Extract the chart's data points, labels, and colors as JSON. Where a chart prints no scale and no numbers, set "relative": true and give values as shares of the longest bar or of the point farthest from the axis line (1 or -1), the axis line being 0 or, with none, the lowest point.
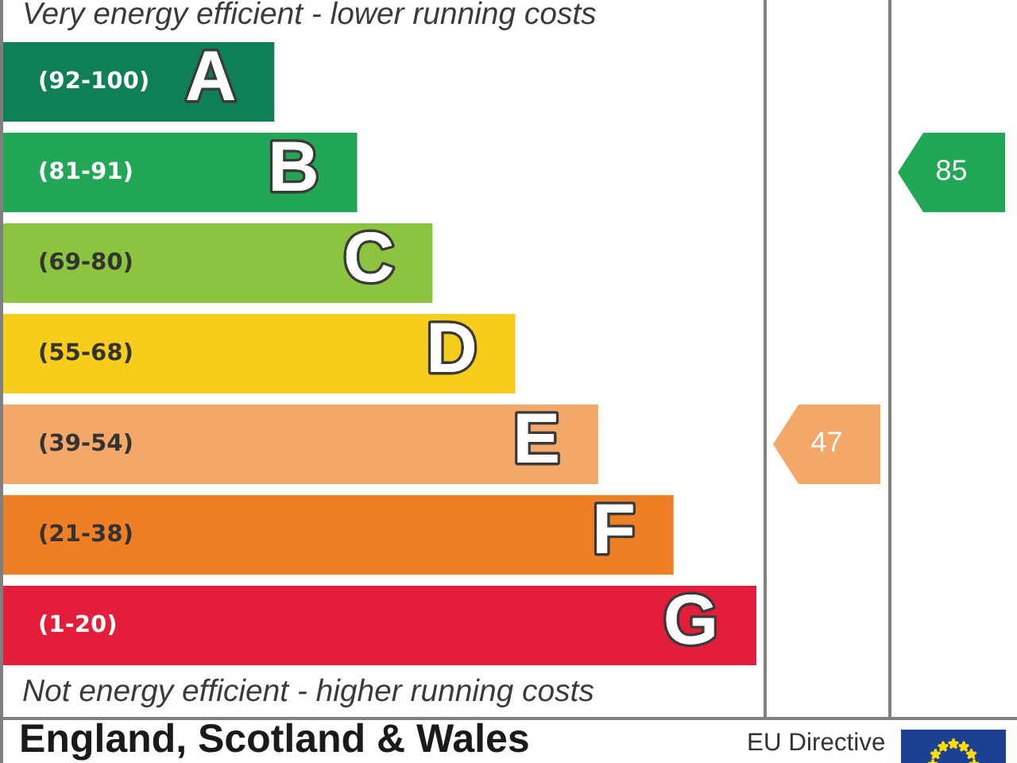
{
  "chart_data": {
    "type": "bar",
    "orientation": "horizontal",
    "relative": true,
    "categories": [
      "(92-100)",
      "(81-91)",
      "(69-80)",
      "(55-68)",
      "(39-54)",
      "(21-38)",
      "(1-20)"
    ],
    "values": [
      0.36,
      0.47,
      0.57,
      0.68,
      0.79,
      0.89,
      1
    ],
    "colors": [
      "#0f7f55",
      "#21a756",
      "#8cc43f",
      "#f7cd1c",
      "#f3a769",
      "#ee7f25",
      "#e41d3b"
    ],
    "annotations": [
      "Very energy efficient - lower running costs",
      "Not energy efficient - higher running costs",
      "England, Scotland & Wales",
      "EU Directive",
      "47",
      "85",
      {
        "text": "A",
        "x": 0.36,
        "y": "(92-100)"
      },
      {
        "text": "B",
        "x": 0.47,
        "y": "(81-91)"
      },
      {
        "text": "C",
        "x": 0.57,
        "y": "(69-80)"
      },
      {
        "text": "D",
        "x": 0.68,
        "y": "(55-68)"
      },
      {
        "text": "E",
        "x": 0.79,
        "y": "(39-54)"
      },
      {
        "text": "F",
        "x": 0.89,
        "y": "(21-38)"
      },
      {
        "text": "G",
        "x": 1,
        "y": "(1-20)"
      }
    ]
  }
}
